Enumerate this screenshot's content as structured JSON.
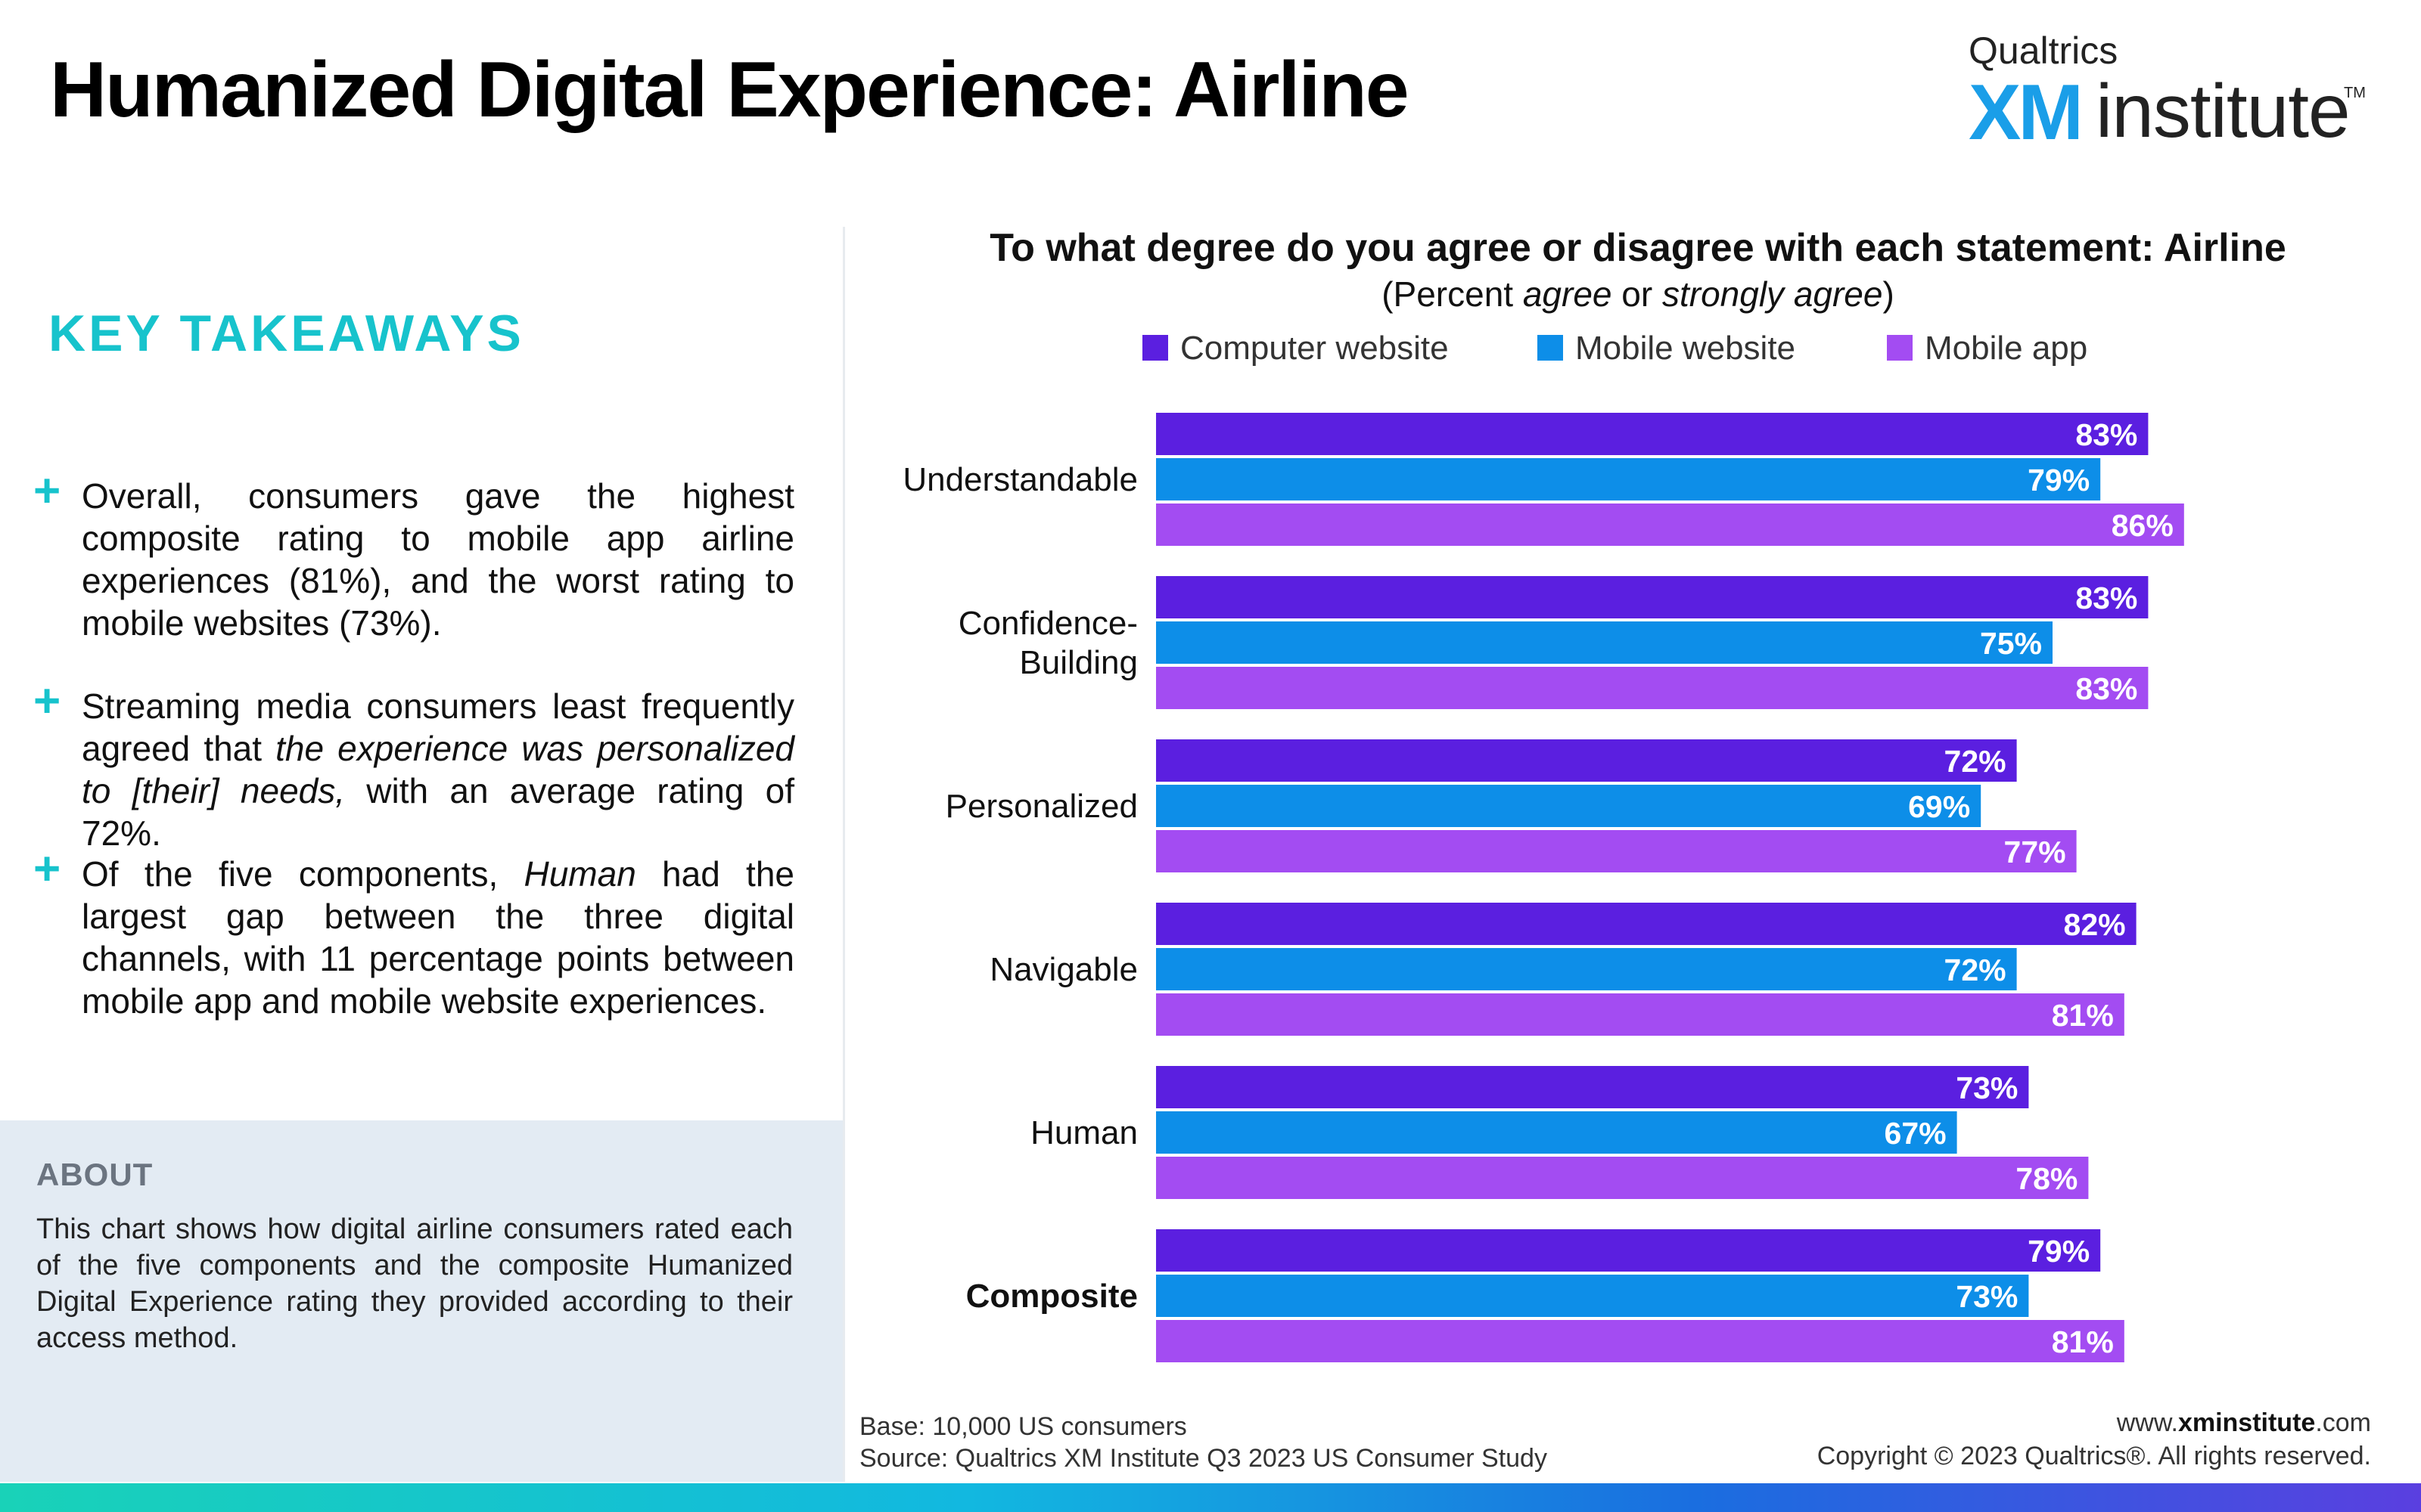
{
  "header": {
    "title": "Humanized Digital Experience: Airline",
    "logo_top": "Qualtrics",
    "logo_xm": "XM",
    "logo_institute": "institute",
    "logo_tm": "TM"
  },
  "key_takeaways": {
    "heading": "KEY TAKEAWAYS",
    "bullets": [
      {
        "parts": [
          {
            "text": "Overall, consumers gave the highest composite rating to mobile app airline experiences (81%), and the worst rating to mobile websites (73%).",
            "italic": false
          }
        ]
      },
      {
        "parts": [
          {
            "text": "Streaming media consumers least frequently agreed that ",
            "italic": false
          },
          {
            "text": "the experience was personalized to [their] needs,",
            "italic": true
          },
          {
            "text": " with an average rating of 72%.",
            "italic": false
          }
        ]
      },
      {
        "parts": [
          {
            "text": "Of the five components, ",
            "italic": false
          },
          {
            "text": "Human",
            "italic": true
          },
          {
            "text": " had the largest gap between the three digital channels, with 11 percentage points between mobile app and mobile website experiences.",
            "italic": false
          }
        ]
      }
    ]
  },
  "about": {
    "heading": "ABOUT",
    "text": "This chart shows how digital airline consumers rated each of the five components and the composite Humanized Digital Experience rating they provided according to their access method."
  },
  "chart_data": {
    "type": "bar",
    "orientation": "horizontal",
    "title": "To what degree do you agree or disagree with each statement: Airline",
    "subtitle_parts": [
      {
        "text": "(Percent ",
        "italic": false
      },
      {
        "text": "agree",
        "italic": true
      },
      {
        "text": " or ",
        "italic": false
      },
      {
        "text": "strongly agree",
        "italic": true
      },
      {
        "text": ")",
        "italic": false
      }
    ],
    "categories": [
      "Understandable",
      "Confidence-\nBuilding",
      "Personalized",
      "Navigable",
      "Human",
      "Composite"
    ],
    "bold_categories": [
      "Composite"
    ],
    "series": [
      {
        "name": "Computer website",
        "color": "#5b1fe0",
        "values": [
          83,
          83,
          72,
          82,
          73,
          79
        ]
      },
      {
        "name": "Mobile website",
        "color": "#0d8ee8",
        "values": [
          79,
          75,
          69,
          72,
          67,
          73
        ]
      },
      {
        "name": "Mobile app",
        "color": "#a34cf2",
        "values": [
          86,
          83,
          77,
          81,
          78,
          81
        ]
      }
    ],
    "value_suffix": "%",
    "legend_position": "top",
    "xlim": [
      0,
      100
    ],
    "grid": false
  },
  "footer": {
    "base": "Base: 10,000 US consumers",
    "source": "Source: Qualtrics XM Institute Q3 2023 US Consumer Study",
    "website_prefix": "www.",
    "website_bold": "xminstitute",
    "website_suffix": ".com",
    "copyright": "Copyright © 2023 Qualtrics®. All rights reserved."
  }
}
